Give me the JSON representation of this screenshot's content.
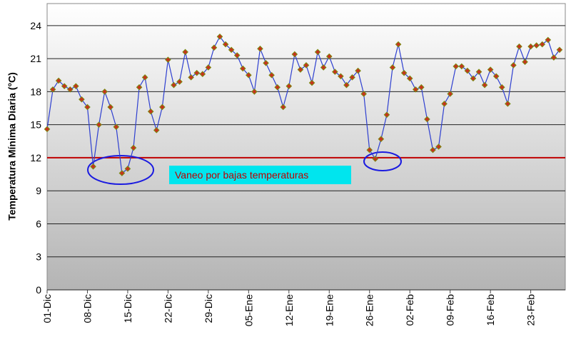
{
  "chart_data": {
    "type": "line",
    "y_label": "Temperatura Mínima Diaria (°C)",
    "categories": [
      "01-Dic",
      null,
      null,
      null,
      null,
      null,
      null,
      "08-Dic",
      null,
      null,
      null,
      null,
      null,
      null,
      "15-Dic",
      null,
      null,
      null,
      null,
      null,
      null,
      "22-Dic",
      null,
      null,
      null,
      null,
      null,
      null,
      "29-Dic",
      null,
      null,
      null,
      null,
      null,
      null,
      "05-Ene",
      null,
      null,
      null,
      null,
      null,
      null,
      "12-Ene",
      null,
      null,
      null,
      null,
      null,
      null,
      "19-Ene",
      null,
      null,
      null,
      null,
      null,
      null,
      "26-Ene",
      null,
      null,
      null,
      null,
      null,
      null,
      "02-Feb",
      null,
      null,
      null,
      null,
      null,
      null,
      "09-Feb",
      null,
      null,
      null,
      null,
      null,
      null,
      "16-Feb",
      null,
      null,
      null,
      null,
      null,
      null,
      "23-Feb",
      null,
      null,
      null,
      null,
      null
    ],
    "values": [
      14.6,
      18.2,
      19.0,
      18.5,
      18.2,
      18.5,
      17.3,
      16.6,
      11.2,
      15.0,
      18.0,
      16.6,
      14.8,
      10.6,
      11.0,
      12.9,
      18.4,
      19.3,
      16.2,
      14.5,
      16.6,
      20.9,
      18.6,
      18.9,
      21.6,
      19.3,
      19.7,
      19.6,
      20.2,
      22.0,
      23.0,
      22.3,
      21.8,
      21.3,
      20.1,
      19.5,
      18.0,
      21.9,
      20.6,
      19.5,
      18.4,
      16.6,
      18.5,
      21.4,
      20.0,
      20.4,
      18.8,
      21.6,
      20.2,
      21.2,
      19.8,
      19.4,
      18.6,
      19.3,
      19.9,
      17.8,
      12.7,
      11.9,
      13.7,
      15.9,
      20.2,
      22.3,
      19.7,
      19.2,
      18.2,
      18.4,
      15.5,
      12.7,
      13.0,
      16.9,
      17.8,
      20.3,
      20.3,
      19.9,
      19.2,
      19.8,
      18.6,
      20.0,
      19.4,
      18.4,
      16.9,
      20.4,
      22.1,
      20.7,
      22.1,
      22.2,
      22.3,
      22.7,
      21.1,
      21.8
    ],
    "color": "#2e3fd0",
    "marker_color": "#c8321e",
    "ylim": [
      0,
      26
    ],
    "yticks": [
      0,
      3,
      6,
      9,
      12,
      15,
      18,
      21,
      24
    ],
    "grid": true,
    "reference_line": {
      "value": 12,
      "color": "#c00000"
    },
    "annotation": "Vaneo por bajas temperaturas"
  }
}
